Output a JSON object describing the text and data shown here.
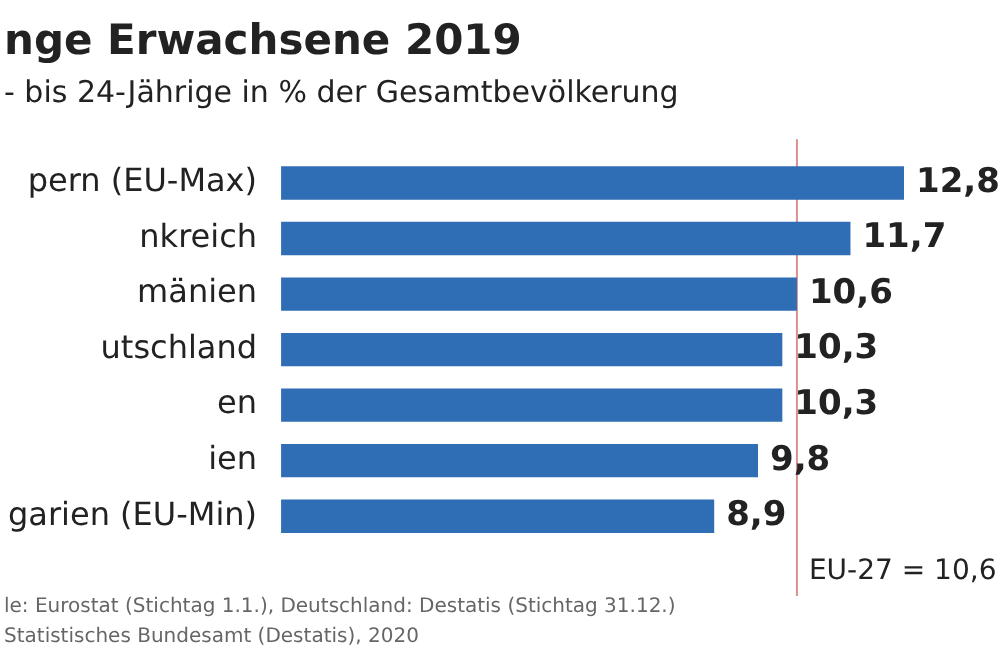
{
  "chart_data": {
    "type": "bar",
    "orientation": "horizontal",
    "title": "nge Erwachsene 2019",
    "subtitle": "- bis 24-Jährige in % der Gesamtbevölkerung",
    "categories": [
      "pern (EU-Max)",
      "nkreich",
      "mänien",
      "utschland",
      "en",
      "ien",
      "garien (EU-Min)"
    ],
    "values": [
      12.8,
      11.7,
      10.6,
      10.3,
      10.3,
      9.8,
      8.9
    ],
    "value_labels": [
      "12,8",
      "11,7",
      "10,6",
      "10,3",
      "10,3",
      "9,8",
      "8,9"
    ],
    "color": "#2f6db5",
    "ref_lines": [
      {
        "axis": "x",
        "value": 10.6,
        "label": "EU-27 = 10,6",
        "color": "#d9918f"
      }
    ],
    "annotations": [
      "le: Eurostat (Stichtag 1.1.), Deutschland: Destatis (Stichtag 31.12.)",
      "Statistisches Bundesamt (Destatis), 2020"
    ]
  }
}
